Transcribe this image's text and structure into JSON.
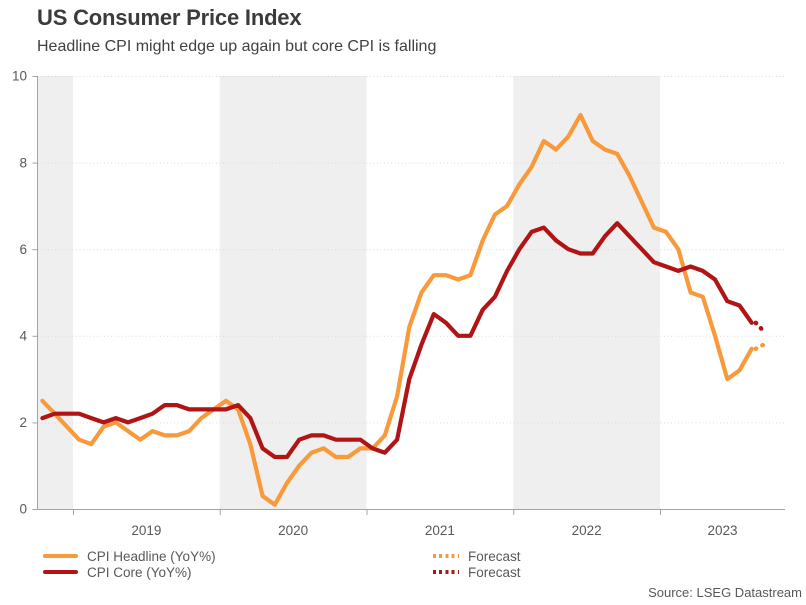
{
  "header": {
    "title": "US Consumer Price Index",
    "subtitle": "Headline CPI might edge up again but core CPI is falling"
  },
  "chart_data": {
    "type": "line",
    "frequency": "monthly",
    "x_monthly_start": "2018-10",
    "x_tick_labels": [
      "2019",
      "2020",
      "2021",
      "2022",
      "2023"
    ],
    "y_ticks": [
      0,
      2,
      4,
      6,
      8,
      10
    ],
    "ylim": [
      0,
      10
    ],
    "grid": "dotted-horizontal",
    "shaded_years": [
      "2018",
      "2020",
      "2022"
    ],
    "series": [
      {
        "name": "CPI Headline (YoY%)",
        "color": "#F8993C",
        "values": [
          2.5,
          2.2,
          1.9,
          1.6,
          1.5,
          1.9,
          2.0,
          1.8,
          1.6,
          1.8,
          1.7,
          1.7,
          1.8,
          2.1,
          2.3,
          2.5,
          2.3,
          1.5,
          0.3,
          0.1,
          0.6,
          1.0,
          1.3,
          1.4,
          1.2,
          1.2,
          1.4,
          1.4,
          1.7,
          2.6,
          4.2,
          5.0,
          5.4,
          5.4,
          5.3,
          5.4,
          6.2,
          6.8,
          7.0,
          7.5,
          7.9,
          8.5,
          8.3,
          8.6,
          9.1,
          8.5,
          8.3,
          8.2,
          7.7,
          7.1,
          6.5,
          6.4,
          6.0,
          5.0,
          4.9,
          4.0,
          3.0,
          3.2,
          3.7
        ]
      },
      {
        "name": "CPI Core (YoY%)",
        "color": "#B01414",
        "values": [
          2.1,
          2.2,
          2.2,
          2.2,
          2.1,
          2.0,
          2.1,
          2.0,
          2.1,
          2.2,
          2.4,
          2.4,
          2.3,
          2.3,
          2.3,
          2.3,
          2.4,
          2.1,
          1.4,
          1.2,
          1.2,
          1.6,
          1.7,
          1.7,
          1.6,
          1.6,
          1.6,
          1.4,
          1.3,
          1.6,
          3.0,
          3.8,
          4.5,
          4.3,
          4.0,
          4.0,
          4.6,
          4.9,
          5.5,
          6.0,
          6.4,
          6.5,
          6.2,
          6.0,
          5.9,
          5.9,
          6.3,
          6.6,
          6.3,
          6.0,
          5.7,
          5.6,
          5.5,
          5.6,
          5.5,
          5.3,
          4.8,
          4.7,
          4.3
        ]
      }
    ],
    "forecast": [
      {
        "label": "Forecast",
        "series_index": 0,
        "value": 3.8
      },
      {
        "label": "Forecast",
        "series_index": 1,
        "value": 4.1
      }
    ],
    "source": "Source: LSEG Datastream"
  }
}
